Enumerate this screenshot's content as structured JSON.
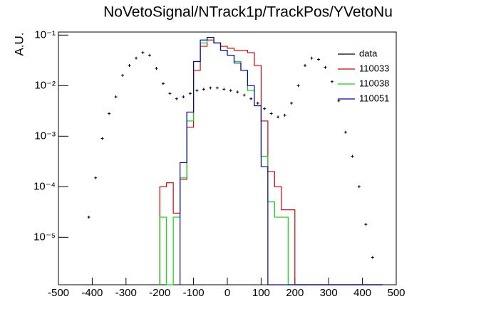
{
  "chart_data": {
    "type": "histogram",
    "title": "NoVetoSignal/NTrack1p/TrackPos/YVetoNu",
    "y_label": "A.U.",
    "log_y": true,
    "legend": "top right",
    "bins": [
      -440,
      -420,
      -400,
      -380,
      -360,
      -340,
      -320,
      -300,
      -280,
      -260,
      -240,
      -220,
      -200,
      -180,
      -160,
      -140,
      -120,
      -100,
      -80,
      -60,
      -40,
      -20,
      0,
      20,
      40,
      60,
      80,
      100,
      120,
      140,
      160,
      180,
      200,
      220,
      240,
      260,
      280,
      300,
      320,
      340,
      360,
      380,
      400,
      420,
      440,
      460
    ],
    "xlim": [
      -500,
      500
    ],
    "xticks": [
      -500,
      -400,
      -300,
      -200,
      -100,
      0,
      100,
      200,
      300,
      400,
      500
    ],
    "ylim": [
      1.15e-06,
      0.115
    ],
    "yticks": [
      {
        "value": 1e-05,
        "label": "10⁻⁵"
      },
      {
        "value": 0.0001,
        "label": "10⁻⁴"
      },
      {
        "value": 0.001,
        "label": "10⁻³"
      },
      {
        "value": 0.01,
        "label": "10⁻²"
      },
      {
        "value": 0.1,
        "label": "10⁻¹"
      }
    ],
    "series": [
      {
        "name": "data",
        "color": "#000000",
        "draw": "markers",
        "values": [
          null,
          2.5e-05,
          0.00015,
          0.0009,
          0.0028,
          0.006,
          0.016,
          0.025,
          0.035,
          0.045,
          0.04,
          0.022,
          0.011,
          0.007,
          0.0055,
          0.006,
          0.007,
          0.008,
          0.0085,
          0.009,
          0.009,
          0.0085,
          0.008,
          0.0075,
          0.0065,
          0.0055,
          0.0045,
          0.0035,
          0.0028,
          0.0024,
          0.0026,
          0.0045,
          0.01,
          0.025,
          0.035,
          0.033,
          0.023,
          0.012,
          0.005,
          0.0012,
          0.0004,
          0.0001,
          1.8e-05,
          4e-06,
          null
        ]
      },
      {
        "name": "110033",
        "color": "#dd0000",
        "draw": "step",
        "values": [
          null,
          null,
          null,
          null,
          null,
          null,
          null,
          null,
          null,
          null,
          null,
          null,
          0.0001,
          0.00012,
          3e-05,
          0.00014,
          0.0015,
          0.02,
          0.06,
          0.08,
          0.07,
          0.06,
          0.055,
          0.05,
          0.05,
          0.045,
          0.025,
          0.002,
          0.0002,
          0.0001,
          3.5e-05,
          3.5e-05,
          null,
          null,
          null,
          null,
          null,
          null,
          null,
          null,
          null,
          null,
          null,
          null,
          null
        ]
      },
      {
        "name": "110038",
        "color": "#00dd00",
        "draw": "step",
        "values": [
          null,
          null,
          null,
          null,
          null,
          null,
          null,
          null,
          null,
          null,
          null,
          null,
          2.5e-05,
          null,
          2.5e-05,
          0.00015,
          0.002,
          0.03,
          0.07,
          0.09,
          0.07,
          0.05,
          0.04,
          0.03,
          0.02,
          0.008,
          0.004,
          0.0004,
          5e-05,
          2.5e-05,
          2.5e-05,
          null,
          null,
          null,
          null,
          null,
          null,
          null,
          null,
          null,
          null,
          null,
          null,
          null,
          null
        ]
      },
      {
        "name": "110051",
        "color": "#0000cc",
        "draw": "step",
        "values": [
          null,
          null,
          null,
          null,
          null,
          null,
          null,
          null,
          null,
          null,
          null,
          null,
          null,
          null,
          null,
          0.0003,
          0.003,
          0.03,
          0.08,
          0.09,
          0.07,
          0.05,
          0.04,
          0.028,
          0.02,
          0.01,
          0.004,
          0.00025,
          null,
          null,
          null,
          null,
          null,
          null,
          null,
          null,
          null,
          null,
          null,
          null,
          null,
          null,
          null,
          null,
          null
        ]
      }
    ]
  }
}
